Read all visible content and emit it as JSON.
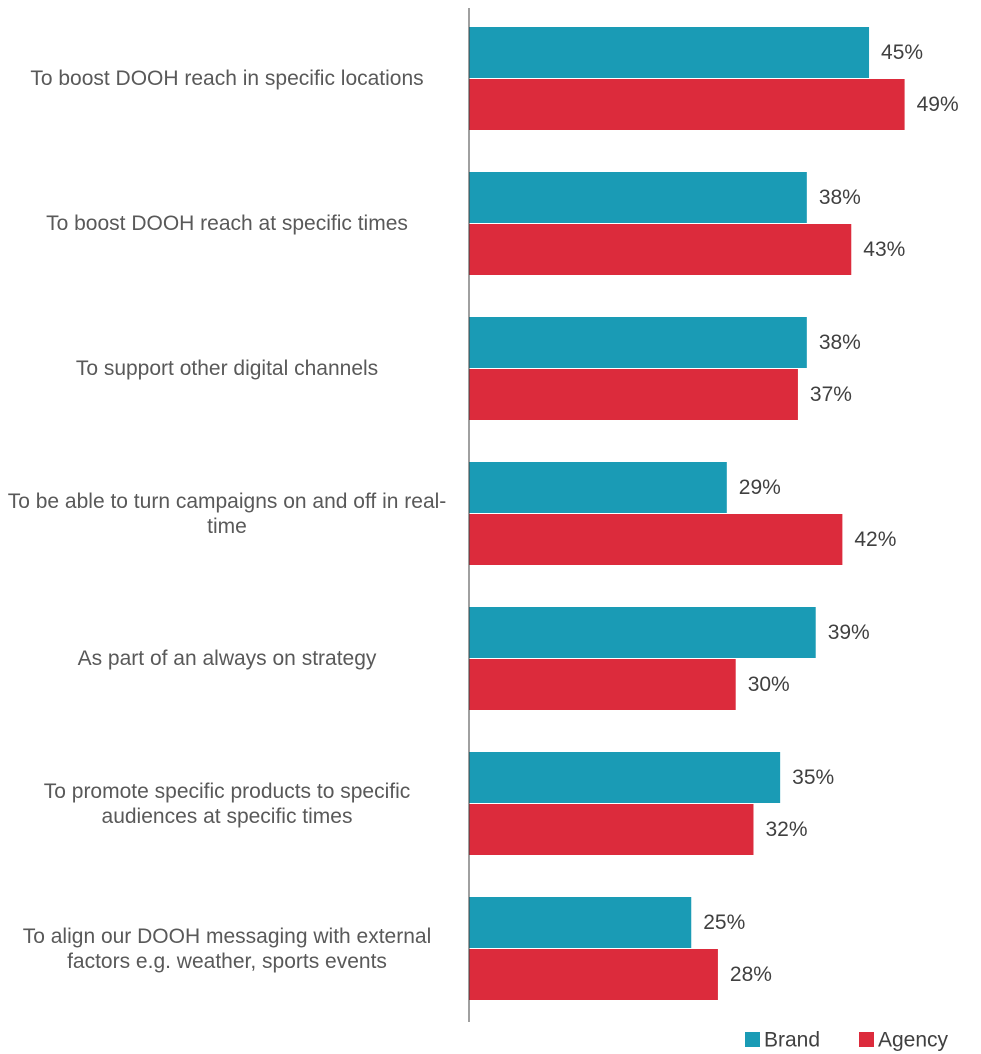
{
  "chart_data": {
    "type": "bar",
    "orientation": "horizontal",
    "categories": [
      "To boost DOOH reach in specific locations",
      "To boost DOOH reach at specific times",
      "To support other digital channels",
      "To be able to turn campaigns on and off in real-time",
      "As part of an always on strategy",
      "To promote specific products to specific audiences at specific times",
      "To align our DOOH messaging with external factors e.g. weather, sports events"
    ],
    "series": [
      {
        "name": "Brand",
        "color": "#1a9bb5",
        "values": [
          45,
          38,
          38,
          29,
          39,
          35,
          25
        ],
        "value_labels": [
          "45%",
          "38%",
          "38%",
          "29%",
          "39%",
          "35%",
          "25%"
        ]
      },
      {
        "name": "Agency",
        "color": "#dc2b3c",
        "values": [
          49,
          43,
          37,
          42,
          30,
          32,
          28
        ],
        "value_labels": [
          "49%",
          "43%",
          "37%",
          "42%",
          "30%",
          "32%",
          "28%"
        ]
      }
    ],
    "legend": "bottom-right"
  }
}
